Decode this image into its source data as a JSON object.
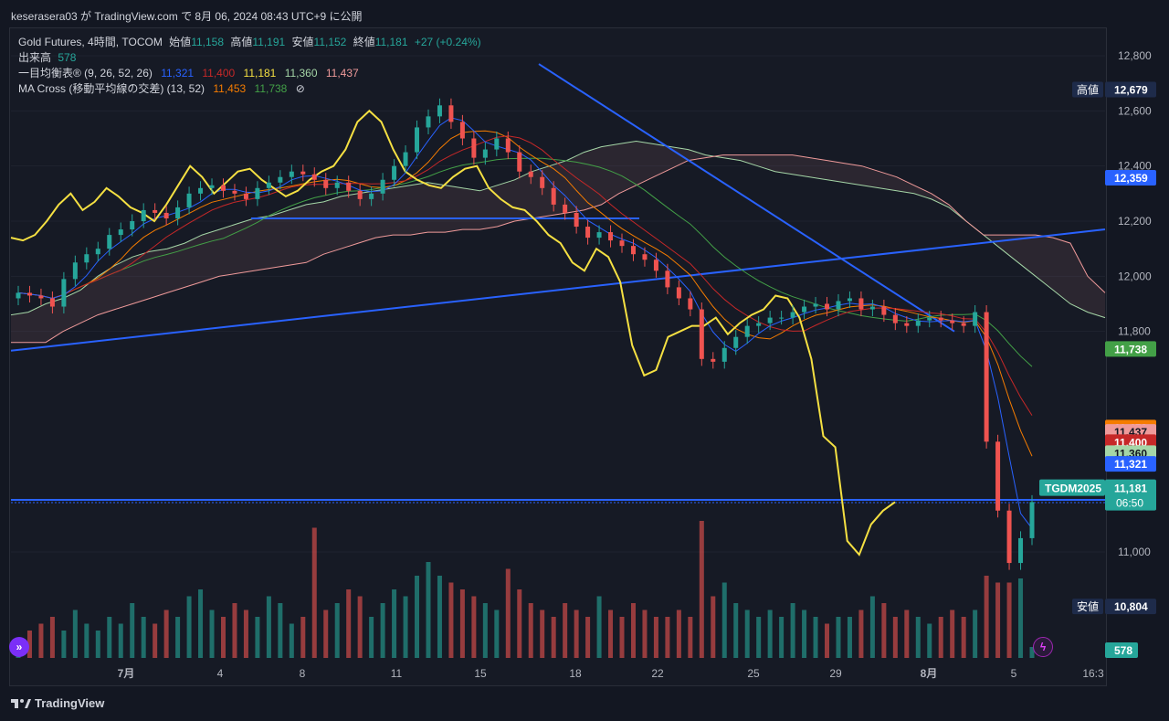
{
  "header": {
    "publish_line": "keserasera03 が TradingView.com で 8月 06, 2024 08:43 UTC+9 に公開"
  },
  "legend": {
    "symbol": "Gold Futures, 4時間, TOCOM",
    "open_label": "始値",
    "open": "11,158",
    "high_label": "高値",
    "high": "11,191",
    "low_label": "安値",
    "low": "11,152",
    "close_label": "終値",
    "close": "11,181",
    "change": "+27 (+0.24%)",
    "volume_label": "出来高",
    "volume": "578",
    "ichimoku_label": "一目均衡表® (9, 26, 52, 26)",
    "ichimoku_values": [
      "11,321",
      "11,400",
      "11,181",
      "11,360",
      "11,437"
    ],
    "ma_label": "MA Cross (移動平均線の交差) (13, 52)",
    "ma_values": [
      "11,453",
      "11,738"
    ],
    "ma_icon": "⊘"
  },
  "price_axis": {
    "ticks": [
      "12,800",
      "12,600",
      "12,400",
      "12,200",
      "12,000",
      "11,800",
      "11,000"
    ],
    "tick_values": [
      12800,
      12600,
      12400,
      12200,
      12000,
      11800,
      11000
    ],
    "badges": [
      {
        "label": "高値",
        "value": "12,679",
        "price": 12679,
        "color": "#1e2b4a",
        "text": "#ffffff"
      },
      {
        "label": "",
        "value": "12,359",
        "price": 12359,
        "color": "#2962ff",
        "text": "#ffffff"
      },
      {
        "label": "",
        "value": "11,738",
        "price": 11738,
        "color": "#43a047",
        "text": "#ffffff"
      },
      {
        "label": "",
        "value": "11,453",
        "price": 11453,
        "color": "#f57c00",
        "text": "#ffffff"
      },
      {
        "label": "",
        "value": "11,437",
        "price": 11437,
        "color": "#ef9a9a",
        "text": "#131722"
      },
      {
        "label": "",
        "value": "11,400",
        "price": 11400,
        "color": "#c62828",
        "text": "#ffffff"
      },
      {
        "label": "",
        "value": "11,360",
        "price": 11360,
        "color": "#a5d6a7",
        "text": "#131722"
      },
      {
        "label": "",
        "value": "11,321",
        "price": 11321,
        "color": "#2962ff",
        "text": "#ffffff"
      },
      {
        "label": "",
        "value": "11,181",
        "price": 11181,
        "color": "#f5e042",
        "text": "#131722"
      },
      {
        "label": "安値",
        "value": "10,804",
        "price": 10804,
        "color": "#1e2b4a",
        "text": "#ffffff"
      }
    ],
    "last_price": {
      "symbol": "TGDM2025",
      "value": "11,181",
      "countdown": "06:50",
      "price": 11230,
      "color": "#26a69a"
    },
    "volume_badge": {
      "value": "578",
      "color": "#26a69a"
    }
  },
  "time_axis": {
    "labels": [
      "7月",
      "4",
      "8",
      "11",
      "15",
      "18",
      "22",
      "25",
      "29",
      "8月",
      "5",
      "16:3"
    ]
  },
  "footer": {
    "brand": "TradingView"
  },
  "icons": {
    "left_button": "double-chevron-right-icon",
    "right_button": "lightning-icon"
  },
  "chart_data": {
    "type": "candlestick",
    "title": "Gold Futures, 4時間, TOCOM",
    "ylim": [
      10800,
      12860
    ],
    "x_labels": [
      "7月",
      "4",
      "8",
      "11",
      "15",
      "18",
      "22",
      "25",
      "29",
      "8月",
      "5",
      "16:3"
    ],
    "close_path": [
      11940,
      11930,
      11920,
      11890,
      11990,
      12050,
      12080,
      12100,
      12150,
      12170,
      12200,
      12240,
      12230,
      12210,
      12250,
      12300,
      12320,
      12330,
      12310,
      12300,
      12280,
      12320,
      12340,
      12360,
      12380,
      12370,
      12350,
      12320,
      12340,
      12310,
      12280,
      12300,
      12350,
      12400,
      12450,
      12540,
      12580,
      12620,
      12560,
      12500,
      12430,
      12460,
      12500,
      12450,
      12380,
      12360,
      12320,
      12260,
      12230,
      12180,
      12140,
      12160,
      12130,
      12110,
      12080,
      12060,
      12020,
      11960,
      11920,
      11880,
      11700,
      11690,
      11740,
      11780,
      11820,
      11830,
      11850,
      11850,
      11870,
      11890,
      11900,
      11880,
      11910,
      11920,
      11880,
      11890,
      11860,
      11830,
      11820,
      11840,
      11850,
      11840,
      11830,
      11820,
      11870,
      11400,
      11150,
      10960,
      11050,
      11181
    ],
    "volume_path": [
      0.15,
      0.2,
      0.25,
      0.3,
      0.2,
      0.35,
      0.25,
      0.2,
      0.3,
      0.25,
      0.4,
      0.3,
      0.25,
      0.35,
      0.3,
      0.45,
      0.5,
      0.35,
      0.3,
      0.4,
      0.35,
      0.3,
      0.45,
      0.4,
      0.25,
      0.3,
      0.95,
      0.35,
      0.4,
      0.5,
      0.45,
      0.3,
      0.4,
      0.5,
      0.45,
      0.6,
      0.7,
      0.6,
      0.55,
      0.5,
      0.45,
      0.4,
      0.35,
      0.65,
      0.5,
      0.4,
      0.35,
      0.3,
      0.4,
      0.35,
      0.3,
      0.45,
      0.35,
      0.3,
      0.4,
      0.35,
      0.3,
      0.3,
      0.35,
      0.3,
      1.0,
      0.45,
      0.55,
      0.4,
      0.35,
      0.3,
      0.35,
      0.3,
      0.4,
      0.35,
      0.3,
      0.25,
      0.3,
      0.3,
      0.35,
      0.45,
      0.4,
      0.3,
      0.35,
      0.3,
      0.25,
      0.3,
      0.35,
      0.3,
      0.35,
      0.6,
      0.55,
      0.55,
      0.58,
      0.08
    ],
    "ichimoku": {
      "tenkan_color": "#2962ff",
      "kijun_color": "#c62828",
      "chikou_color": "#f5e042",
      "senkou_a_color": "#a5d6a7",
      "senkou_b_color": "#ef9a9a"
    },
    "ma_cross": {
      "fast_color": "#f57c00",
      "slow_color": "#43a047"
    },
    "trendlines_color": "#2962ff",
    "levels": {
      "high": 12679,
      "low": 10804,
      "support": 12210
    }
  }
}
